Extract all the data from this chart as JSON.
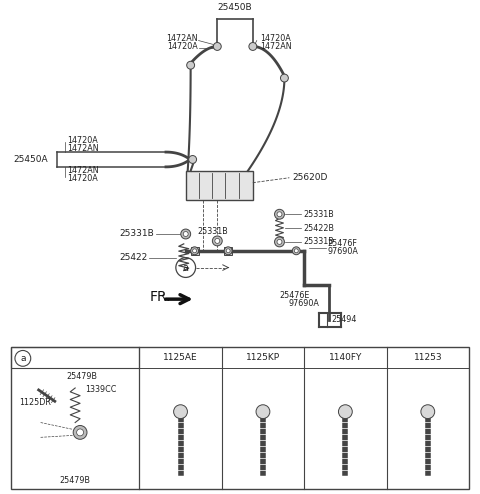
{
  "bg_color": "#ffffff",
  "gray": "#444444",
  "lgray": "#888888",
  "dgray": "#222222",
  "table_labels_top": [
    "1125AE",
    "1125KP",
    "1140FY",
    "11253"
  ],
  "circle_a_label": "a",
  "fs": 6.5,
  "fs_small": 5.8
}
